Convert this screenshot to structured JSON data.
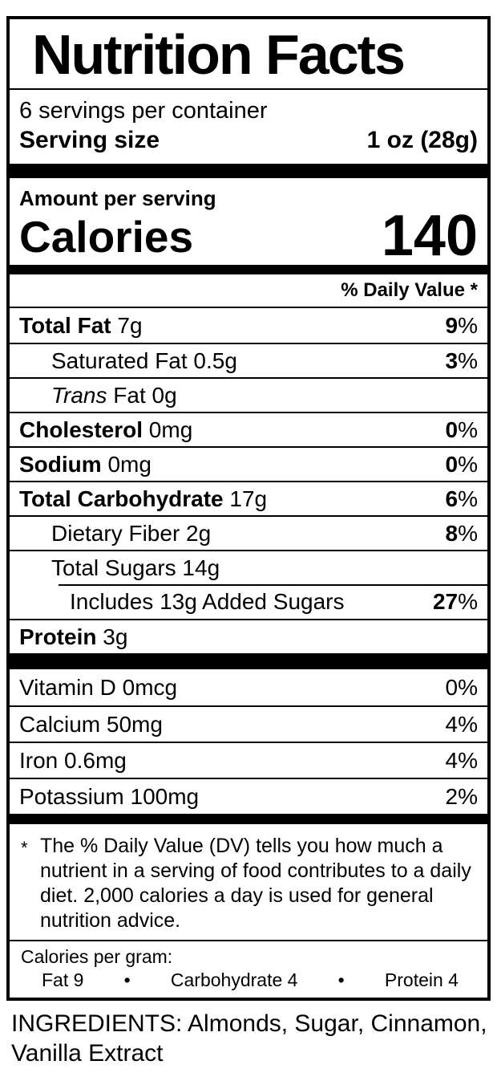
{
  "label": {
    "title": "Nutrition Facts",
    "servings_per_container": "6 servings per container",
    "serving_size": {
      "label": "Serving size",
      "value": "1 oz (28g)"
    },
    "amount_per_serving": "Amount per serving",
    "calories": {
      "label": "Calories",
      "value": "140"
    },
    "daily_value_header": "% Daily Value *",
    "percent_sign": "%",
    "nutrients": [
      {
        "bold": "Total Fat",
        "text": " 7g",
        "pct": "9",
        "indent": 0,
        "sep": "none"
      },
      {
        "bold": "",
        "text": "Saturated Fat 0.5g",
        "pct": "3",
        "indent": 1,
        "sep": "full"
      },
      {
        "bold": "",
        "italic": "Trans",
        "text": " Fat 0g",
        "pct": null,
        "indent": 1,
        "sep": "full"
      },
      {
        "bold": "Cholesterol",
        "text": " 0mg",
        "pct": "0",
        "indent": 0,
        "sep": "full"
      },
      {
        "bold": "Sodium",
        "text": " 0mg",
        "pct": "0",
        "indent": 0,
        "sep": "full"
      },
      {
        "bold": "Total Carbohydrate",
        "text": " 17g",
        "pct": "6",
        "indent": 0,
        "sep": "full"
      },
      {
        "bold": "",
        "text": "Dietary Fiber 2g",
        "pct": "8",
        "indent": 1,
        "sep": "full"
      },
      {
        "bold": "",
        "text": "Total Sugars 14g",
        "pct": null,
        "indent": 1,
        "sep": "full"
      },
      {
        "bold": "",
        "text": "Includes 13g Added Sugars",
        "pct": "27",
        "indent": 2,
        "sep": "partial"
      },
      {
        "bold": "Protein",
        "text": " 3g",
        "pct": null,
        "indent": 0,
        "sep": "full"
      }
    ],
    "vitamins": [
      {
        "text": "Vitamin D 0mcg",
        "pct": "0",
        "sep": "none"
      },
      {
        "text": "Calcium 50mg",
        "pct": "4",
        "sep": "full"
      },
      {
        "text": "Iron 0.6mg",
        "pct": "4",
        "sep": "full"
      },
      {
        "text": "Potassium 100mg",
        "pct": "2",
        "sep": "full"
      }
    ],
    "footnote": {
      "marker": "*",
      "text": "The % Daily Value (DV) tells you how much a\nnutrient in a serving of food contributes to a daily\ndiet. 2,000 calories a day is used for general\nnutrition advice."
    },
    "calories_per_gram": {
      "heading": "Calories per gram:",
      "items": [
        "Fat 9",
        "Carbohydrate 4",
        "Protein 4"
      ],
      "bullet": "•"
    }
  },
  "ingredients": "INGREDIENTS: Almonds, Sugar, Cinnamon,\nVanilla Extract",
  "colors": {
    "text": "#000000",
    "background": "#ffffff"
  }
}
